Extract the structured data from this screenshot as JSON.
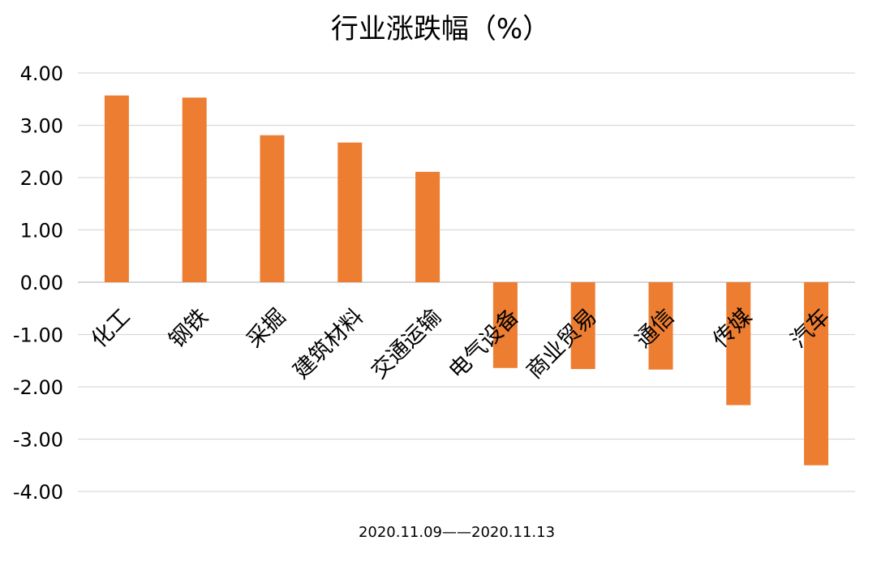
{
  "chart_data": {
    "type": "bar",
    "title": "行业涨跌幅（%）",
    "xlabel": "2020.11.09——2020.11.13",
    "ylabel": "",
    "categories": [
      "化工",
      "钢铁",
      "采掘",
      "建筑材料",
      "交通运输",
      "电气设备",
      "商业贸易",
      "通信",
      "传媒",
      "汽车"
    ],
    "values": [
      3.57,
      3.53,
      2.81,
      2.67,
      2.11,
      -1.64,
      -1.66,
      -1.67,
      -2.35,
      -3.5
    ],
    "ylim": [
      -4,
      4
    ],
    "yticks": [
      "4.00",
      "3.00",
      "2.00",
      "1.00",
      "0.00",
      "-1.00",
      "-2.00",
      "-3.00",
      "-4.00"
    ],
    "bar_color": "#ED7D31",
    "grid": true,
    "legend": "none"
  }
}
